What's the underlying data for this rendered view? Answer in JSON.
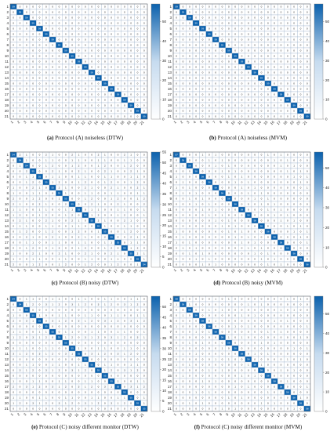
{
  "chart_data": [
    {
      "type": "heatmap",
      "caption_letter": "(a)",
      "caption_text": "Protocol (A) noiseless (DTW)",
      "rows": [
        "1",
        "2",
        "3",
        "4",
        "5",
        "6",
        "7",
        "8",
        "9",
        "10",
        "11",
        "12",
        "13",
        "14",
        "15",
        "16",
        "17",
        "18",
        "19",
        "20",
        "21"
      ],
      "cols": [
        "1",
        "2",
        "3",
        "4",
        "5",
        "6",
        "7",
        "8",
        "9",
        "10",
        "11",
        "12",
        "13",
        "14",
        "15",
        "16",
        "17",
        "18",
        "19",
        "20",
        "21"
      ],
      "diagonal": [
        59,
        59,
        59,
        59,
        59,
        59,
        59,
        59,
        59,
        59,
        59,
        59,
        59,
        59,
        59,
        59,
        59,
        59,
        59,
        59,
        59
      ],
      "off_diagonal_value": 0,
      "colorbar_ticks": [
        0,
        10,
        20,
        30,
        40,
        50
      ],
      "vmax": 59
    },
    {
      "type": "heatmap",
      "caption_letter": "(b)",
      "caption_text": "Protocol (A) noiseless (MVM)",
      "rows": [
        "1",
        "2",
        "3",
        "4",
        "5",
        "6",
        "7",
        "8",
        "9",
        "10",
        "11",
        "12",
        "13",
        "14",
        "15",
        "16",
        "17",
        "18",
        "19",
        "20",
        "21"
      ],
      "cols": [
        "1",
        "2",
        "3",
        "4",
        "5",
        "6",
        "7",
        "8",
        "9",
        "10",
        "11",
        "12",
        "13",
        "14",
        "15",
        "16",
        "17",
        "18",
        "19",
        "20",
        "21"
      ],
      "diagonal": [
        59,
        59,
        59,
        59,
        59,
        59,
        59,
        59,
        59,
        59,
        59,
        59,
        59,
        59,
        59,
        59,
        59,
        59,
        59,
        59,
        59
      ],
      "off_diagonal_value": 0,
      "colorbar_ticks": [
        0,
        10,
        20,
        30,
        40,
        50
      ],
      "vmax": 59
    },
    {
      "type": "heatmap",
      "caption_letter": "(c)",
      "caption_text": "Protocol (B) noisy (DTW)",
      "rows": [
        "1",
        "2",
        "3",
        "4",
        "5",
        "6",
        "7",
        "8",
        "9",
        "10",
        "11",
        "12",
        "13",
        "14",
        "15",
        "16",
        "17",
        "18",
        "19",
        "20",
        "21"
      ],
      "cols": [
        "1",
        "2",
        "3",
        "4",
        "5",
        "6",
        "7",
        "8",
        "9",
        "10",
        "11",
        "12",
        "13",
        "14",
        "15",
        "16",
        "17",
        "18",
        "19",
        "20",
        "21"
      ],
      "diagonal": [
        54,
        54,
        54,
        55,
        55,
        55,
        55,
        55,
        55,
        55,
        55,
        55,
        55,
        55,
        55,
        55,
        55,
        55,
        55,
        55,
        54
      ],
      "off_diagonal_pattern": [
        0,
        1,
        0,
        2,
        0,
        1,
        1,
        0,
        2,
        0,
        1,
        0
      ],
      "colorbar_ticks": [
        0,
        5,
        10,
        15,
        20,
        25,
        30,
        35,
        40,
        45,
        50,
        55
      ],
      "vmax": 55
    },
    {
      "type": "heatmap",
      "caption_letter": "(d)",
      "caption_text": "Protocol (B) noisy (MVM)",
      "rows": [
        "1",
        "2",
        "3",
        "4",
        "5",
        "6",
        "7",
        "8",
        "9",
        "10",
        "11",
        "12",
        "13",
        "14",
        "15",
        "16",
        "17",
        "18",
        "19",
        "20",
        "21"
      ],
      "cols": [
        "1",
        "2",
        "3",
        "4",
        "5",
        "6",
        "7",
        "8",
        "9",
        "10",
        "11",
        "12",
        "13",
        "14",
        "15",
        "16",
        "17",
        "18",
        "19",
        "20",
        "21"
      ],
      "diagonal": [
        57,
        58,
        58,
        58,
        58,
        58,
        58,
        58,
        58,
        58,
        58,
        58,
        58,
        58,
        58,
        58,
        58,
        58,
        58,
        58,
        58
      ],
      "off_diagonal_pattern": [
        0,
        0,
        1,
        0,
        0,
        0,
        0,
        0,
        1,
        0
      ],
      "colorbar_ticks": [
        0,
        10,
        20,
        30,
        40,
        50
      ],
      "vmax": 58
    },
    {
      "type": "heatmap",
      "caption_letter": "(e)",
      "caption_text": "Protocol (C) noisy different monitor (DTW)",
      "rows": [
        "1",
        "2",
        "3",
        "4",
        "5",
        "6",
        "7",
        "8",
        "9",
        "10",
        "11",
        "12",
        "13",
        "14",
        "15",
        "16",
        "17",
        "18",
        "19",
        "20",
        "21"
      ],
      "cols": [
        "1",
        "2",
        "3",
        "4",
        "5",
        "6",
        "7",
        "8",
        "9",
        "10",
        "11",
        "12",
        "13",
        "14",
        "15",
        "16",
        "17",
        "18",
        "19",
        "20",
        "21"
      ],
      "diagonal": [
        54,
        54,
        55,
        55,
        55,
        55,
        55,
        55,
        55,
        55,
        55,
        55,
        55,
        55,
        55,
        55,
        55,
        55,
        55,
        55,
        55
      ],
      "off_diagonal_pattern": [
        0,
        1,
        0,
        0,
        2,
        0,
        1,
        0,
        0,
        1,
        3,
        0
      ],
      "colorbar_ticks": [
        0,
        5,
        10,
        15,
        20,
        25,
        30,
        35,
        40,
        45,
        50
      ],
      "vmax": 55
    },
    {
      "type": "heatmap",
      "caption_letter": "(f)",
      "caption_text": "Protocol (C) noisy different monitor (MVM)",
      "rows": [
        "1",
        "2",
        "3",
        "4",
        "5",
        "6",
        "7",
        "8",
        "9",
        "10",
        "11",
        "12",
        "13",
        "14",
        "15",
        "16",
        "17",
        "18",
        "19",
        "20",
        "21"
      ],
      "cols": [
        "1",
        "2",
        "3",
        "4",
        "5",
        "6",
        "7",
        "8",
        "9",
        "10",
        "11",
        "12",
        "13",
        "14",
        "15",
        "16",
        "17",
        "18",
        "19",
        "20",
        "21"
      ],
      "diagonal": [
        58,
        58,
        58,
        58,
        58,
        58,
        58,
        58,
        58,
        58,
        58,
        58,
        58,
        58,
        58,
        58,
        58,
        58,
        58,
        58,
        58
      ],
      "off_diagonal_pattern": [
        0,
        0,
        1,
        0,
        0,
        0,
        0,
        1,
        0,
        0,
        0
      ],
      "colorbar_ticks": [
        0,
        10,
        20,
        30,
        40,
        50
      ],
      "vmax": 59
    }
  ],
  "colors": {
    "low": "#ffffff",
    "high": "#0b61ad",
    "grid": "#9ab0c8",
    "text_dark": "#1a1a1a",
    "text_light": "#ffffff"
  }
}
